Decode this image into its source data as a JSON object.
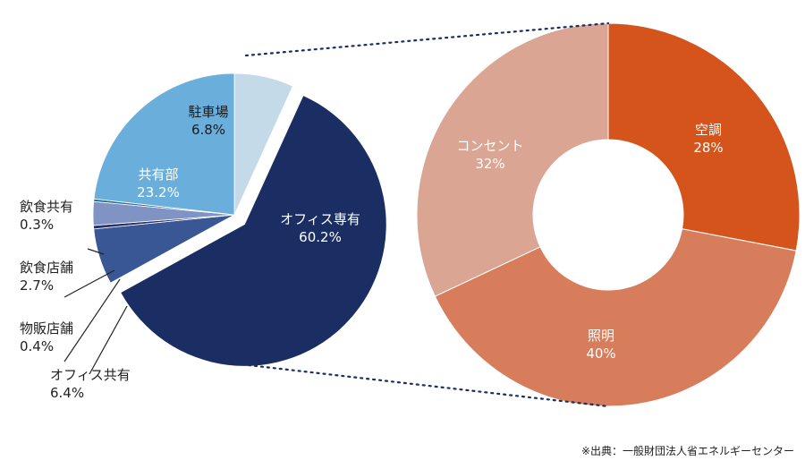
{
  "source_note": "※出典：一般財団法人省エネルギーセンター",
  "chart_data": [
    {
      "type": "pie",
      "slices": [
        {
          "label": "駐車場",
          "value": 6.8,
          "value_text": "6.8%",
          "color": "#c4dae8",
          "text_color": "#1a1a1a"
        },
        {
          "label": "オフィス専有",
          "value": 60.2,
          "value_text": "60.2%",
          "color": "#1b2e64",
          "text_color": "#ffffff",
          "exploded": true
        },
        {
          "label": "オフィス共有",
          "value": 6.4,
          "value_text": "6.4%",
          "color": "#3a5795",
          "text_color": "#1a1a1a"
        },
        {
          "label": "物販店舗",
          "value": 0.4,
          "value_text": "0.4%",
          "color": "#26336a",
          "text_color": "#1a1a1a"
        },
        {
          "label": "飲食店舗",
          "value": 2.7,
          "value_text": "2.7%",
          "color": "#7f93c4",
          "text_color": "#1a1a1a"
        },
        {
          "label": "飲食共有",
          "value": 0.3,
          "value_text": "0.3%",
          "color": "#2a6f96",
          "text_color": "#1a1a1a"
        },
        {
          "label": "共有部",
          "value": 23.2,
          "value_text": "23.2%",
          "color": "#6aaedb",
          "text_color": "#ffffff"
        }
      ]
    },
    {
      "type": "pie",
      "subtype": "donut",
      "slices": [
        {
          "label": "空調",
          "value": 28,
          "value_text": "28%",
          "color": "#d4541b",
          "text_color": "#ffffff"
        },
        {
          "label": "照明",
          "value": 40,
          "value_text": "40%",
          "color": "#d77d5c",
          "text_color": "#ffffff"
        },
        {
          "label": "コンセント",
          "value": 32,
          "value_text": "32%",
          "color": "#dba593",
          "text_color": "#ffffff"
        }
      ]
    }
  ]
}
